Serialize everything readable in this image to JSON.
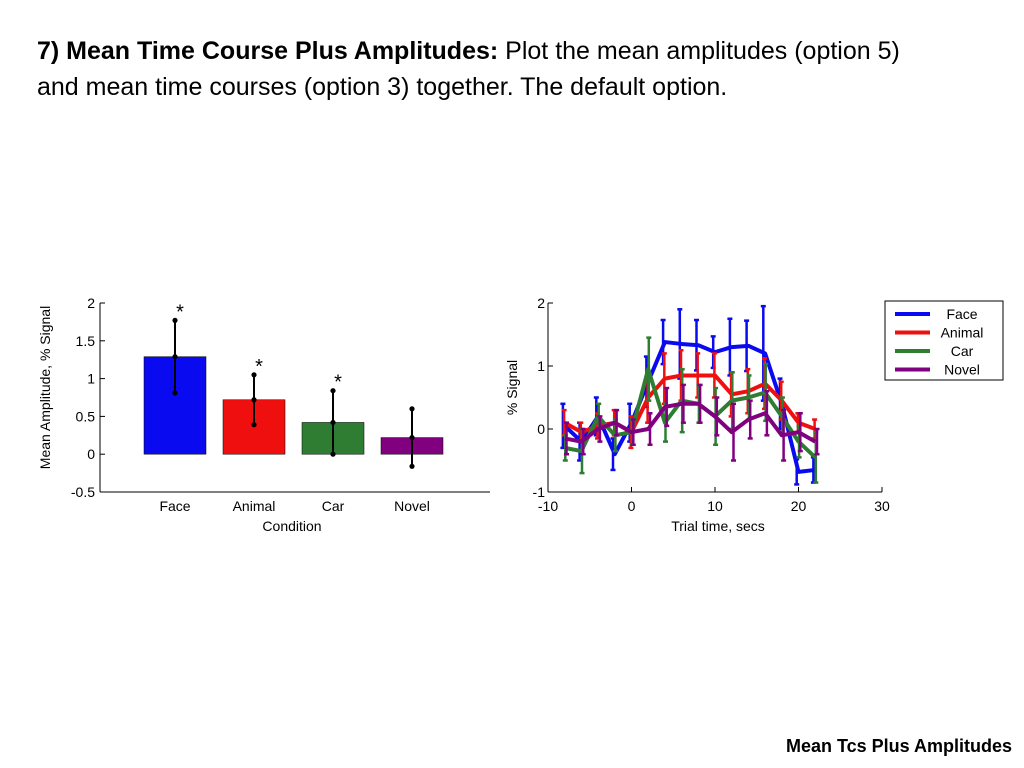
{
  "slide": {
    "heading_bold": "7) Mean Time Course Plus Amplitudes:",
    "heading_rest": " Plot the mean amplitudes (option 5) and mean time courses (option 3) together. The default option.",
    "footer": "Mean Tcs Plus Amplitudes"
  },
  "chart_data": [
    {
      "type": "bar",
      "xlabel": "Condition",
      "ylabel": "Mean Amplitude, % Signal",
      "ylim": [
        -0.5,
        2
      ],
      "yticks": [
        -0.5,
        0,
        0.5,
        1,
        1.5,
        2
      ],
      "categories": [
        "Face",
        "Animal",
        "Car",
        "Novel"
      ],
      "values": [
        1.29,
        0.72,
        0.42,
        0.22
      ],
      "errors": [
        0.48,
        0.33,
        0.42,
        0.38
      ],
      "colors": [
        "#0a0af0",
        "#f00f0f",
        "#2e7d32",
        "#800080"
      ],
      "significance": [
        "*",
        "*",
        "*",
        ""
      ]
    },
    {
      "type": "line",
      "xlabel": "Trial time, secs",
      "ylabel": "% Signal",
      "xlim": [
        -10,
        30
      ],
      "ylim": [
        -1,
        2
      ],
      "xticks": [
        -10,
        0,
        10,
        20,
        30
      ],
      "yticks": [
        -1,
        0,
        1,
        2
      ],
      "legend_position": "top-right",
      "x": [
        -8,
        -6,
        -4,
        -2,
        0,
        2,
        4,
        6,
        8,
        10,
        12,
        14,
        16,
        18,
        20,
        22
      ],
      "series": [
        {
          "name": "Face",
          "color": "#0a0af0",
          "values": [
            0.05,
            -0.2,
            0.2,
            -0.4,
            0.1,
            0.75,
            1.38,
            1.35,
            1.33,
            1.22,
            1.3,
            1.32,
            1.2,
            0.4,
            -0.68,
            -0.65
          ],
          "errors": [
            0.35,
            0.3,
            0.3,
            0.25,
            0.3,
            0.4,
            0.35,
            0.55,
            0.4,
            0.25,
            0.45,
            0.4,
            0.75,
            0.4,
            0.2,
            0.2
          ]
        },
        {
          "name": "Animal",
          "color": "#f00f0f",
          "values": [
            0.1,
            -0.05,
            0.05,
            0.1,
            -0.05,
            0.5,
            0.8,
            0.85,
            0.85,
            0.85,
            0.55,
            0.6,
            0.72,
            0.45,
            0.1,
            0.0
          ],
          "errors": [
            0.2,
            0.15,
            0.2,
            0.2,
            0.25,
            0.4,
            0.4,
            0.4,
            0.35,
            0.35,
            0.35,
            0.35,
            0.4,
            0.3,
            0.15,
            0.15
          ]
        },
        {
          "name": "Car",
          "color": "#2e7d32",
          "values": [
            -0.3,
            -0.35,
            0.2,
            -0.1,
            -0.05,
            0.95,
            0.1,
            0.45,
            0.4,
            0.2,
            0.45,
            0.5,
            0.58,
            0.2,
            -0.2,
            -0.45
          ],
          "errors": [
            0.2,
            0.35,
            0.2,
            0.25,
            0.2,
            0.5,
            0.3,
            0.5,
            0.3,
            0.45,
            0.45,
            0.35,
            0.45,
            0.3,
            0.25,
            0.4
          ]
        },
        {
          "name": "Novel",
          "color": "#800080",
          "values": [
            -0.15,
            -0.2,
            0.0,
            0.1,
            -0.05,
            0.0,
            0.35,
            0.4,
            0.4,
            0.2,
            -0.05,
            0.15,
            0.25,
            -0.1,
            -0.05,
            -0.2
          ],
          "errors": [
            0.25,
            0.2,
            0.2,
            0.2,
            0.2,
            0.25,
            0.3,
            0.3,
            0.3,
            0.3,
            0.45,
            0.3,
            0.35,
            0.4,
            0.3,
            0.2
          ]
        }
      ]
    }
  ]
}
